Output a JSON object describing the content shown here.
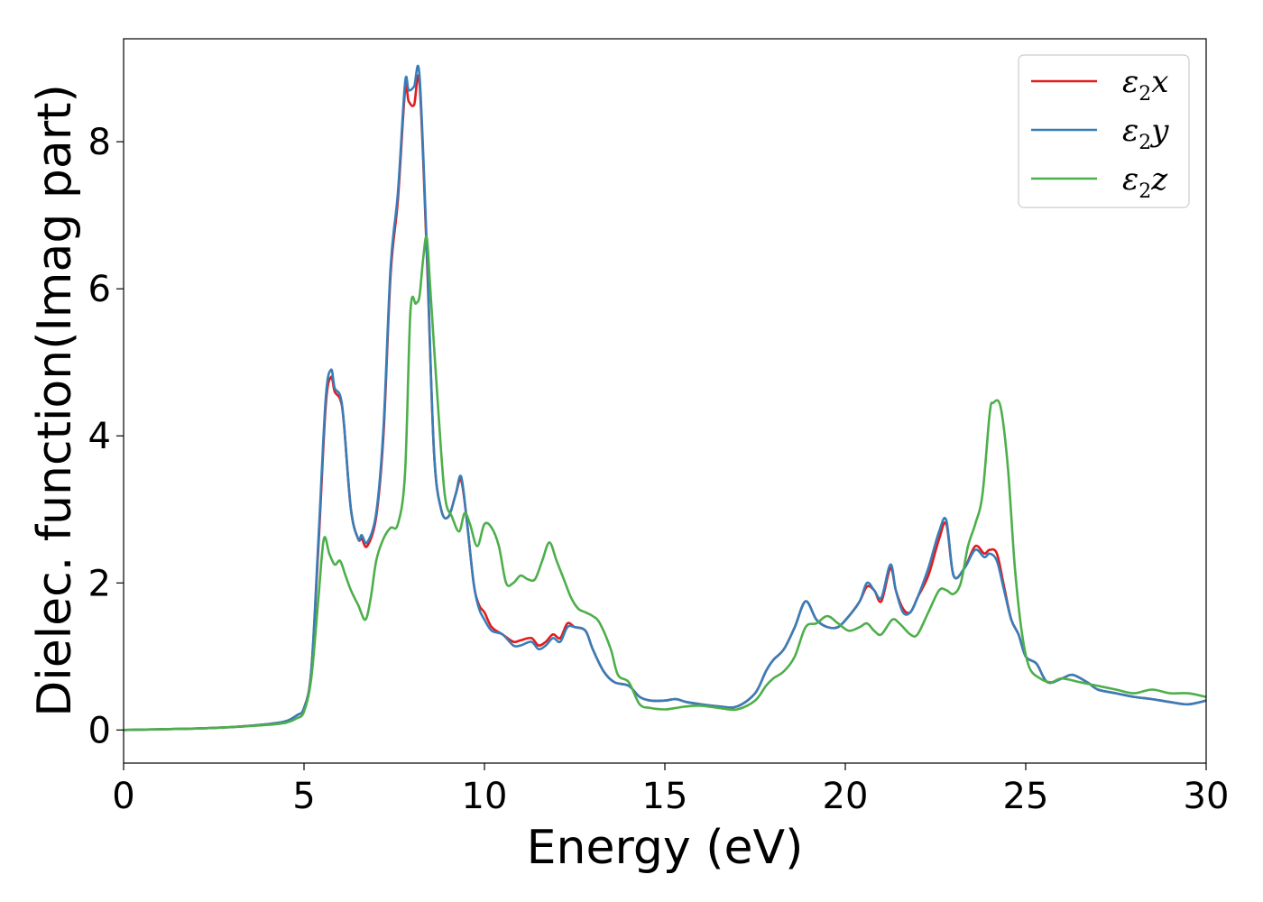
{
  "chart_data": {
    "type": "line",
    "title": "",
    "xlabel": "Energy (eV)",
    "ylabel": "Dielec. function(Imag part)",
    "xlim": [
      0,
      30
    ],
    "ylim": [
      -0.45,
      9.4
    ],
    "xticks": [
      0,
      5,
      10,
      15,
      20,
      25,
      30
    ],
    "xtick_labels": [
      "0",
      "5",
      "10",
      "15",
      "20",
      "25",
      "30"
    ],
    "yticks": [
      0,
      2,
      4,
      6,
      8
    ],
    "ytick_labels": [
      "0",
      "2",
      "4",
      "6",
      "8"
    ],
    "grid": false,
    "legend_position": "top-right",
    "series": [
      {
        "name": "ε2x",
        "base": "ε",
        "sub": "2",
        "suffix": "x",
        "color": "#e41a1c",
        "x": [
          0,
          1,
          2,
          3,
          4,
          4.5,
          4.8,
          5.0,
          5.2,
          5.4,
          5.6,
          5.75,
          5.85,
          6.0,
          6.1,
          6.3,
          6.5,
          6.6,
          6.75,
          7.0,
          7.2,
          7.4,
          7.6,
          7.8,
          7.9,
          8.05,
          8.2,
          8.4,
          8.6,
          8.8,
          9.0,
          9.2,
          9.35,
          9.5,
          9.7,
          9.85,
          10.0,
          10.2,
          10.5,
          10.8,
          11.0,
          11.3,
          11.5,
          11.7,
          11.9,
          12.1,
          12.3,
          12.5,
          12.8,
          13.0,
          13.3,
          13.6,
          14.0,
          14.3,
          14.6,
          15.0,
          15.3,
          15.6,
          16.0,
          16.5,
          17.0,
          17.5,
          17.8,
          18.0,
          18.3,
          18.6,
          18.9,
          19.2,
          19.5,
          19.8,
          20.1,
          20.4,
          20.6,
          20.8,
          21.0,
          21.25,
          21.4,
          21.6,
          21.8,
          22.0,
          22.3,
          22.6,
          22.8,
          23.0,
          23.3,
          23.6,
          23.85,
          24.0,
          24.2,
          24.4,
          24.6,
          24.8,
          25.0,
          25.3,
          25.6,
          26.0,
          26.3,
          26.7,
          27.0,
          27.5,
          28.0,
          28.5,
          29.0,
          29.5,
          30.0
        ],
        "y": [
          0.0,
          0.01,
          0.02,
          0.04,
          0.08,
          0.12,
          0.2,
          0.3,
          0.8,
          2.5,
          4.4,
          4.8,
          4.6,
          4.5,
          4.2,
          3.0,
          2.6,
          2.6,
          2.5,
          2.9,
          4.0,
          6.2,
          7.2,
          8.7,
          8.55,
          8.5,
          8.8,
          6.5,
          3.8,
          3.0,
          2.9,
          3.2,
          3.4,
          2.9,
          2.0,
          1.7,
          1.6,
          1.4,
          1.3,
          1.2,
          1.22,
          1.25,
          1.15,
          1.2,
          1.3,
          1.25,
          1.45,
          1.4,
          1.35,
          1.1,
          0.8,
          0.65,
          0.6,
          0.45,
          0.4,
          0.4,
          0.42,
          0.38,
          0.35,
          0.32,
          0.32,
          0.5,
          0.8,
          0.95,
          1.1,
          1.4,
          1.75,
          1.5,
          1.4,
          1.4,
          1.55,
          1.75,
          1.95,
          1.9,
          1.75,
          2.2,
          1.9,
          1.65,
          1.6,
          1.8,
          2.1,
          2.6,
          2.8,
          2.1,
          2.2,
          2.5,
          2.4,
          2.45,
          2.4,
          1.95,
          1.5,
          1.3,
          1.0,
          0.9,
          0.65,
          0.7,
          0.75,
          0.65,
          0.55,
          0.5,
          0.45,
          0.42,
          0.38,
          0.35,
          0.4
        ]
      },
      {
        "name": "ε2y",
        "base": "ε",
        "sub": "2",
        "suffix": "y",
        "color": "#377eb8",
        "x": [
          0,
          1,
          2,
          3,
          4,
          4.5,
          4.8,
          5.0,
          5.2,
          5.4,
          5.6,
          5.75,
          5.85,
          6.0,
          6.1,
          6.3,
          6.5,
          6.6,
          6.75,
          7.0,
          7.2,
          7.4,
          7.6,
          7.8,
          7.9,
          8.05,
          8.2,
          8.4,
          8.6,
          8.8,
          9.0,
          9.2,
          9.35,
          9.5,
          9.7,
          9.85,
          10.0,
          10.2,
          10.5,
          10.8,
          11.0,
          11.3,
          11.5,
          11.7,
          11.9,
          12.1,
          12.3,
          12.5,
          12.8,
          13.0,
          13.3,
          13.6,
          14.0,
          14.3,
          14.6,
          15.0,
          15.3,
          15.6,
          16.0,
          16.5,
          17.0,
          17.5,
          17.8,
          18.0,
          18.3,
          18.6,
          18.9,
          19.2,
          19.5,
          19.8,
          20.1,
          20.4,
          20.6,
          20.8,
          21.0,
          21.25,
          21.4,
          21.6,
          21.8,
          22.0,
          22.3,
          22.6,
          22.8,
          23.0,
          23.3,
          23.6,
          23.85,
          24.0,
          24.2,
          24.4,
          24.6,
          24.8,
          25.0,
          25.3,
          25.6,
          26.0,
          26.3,
          26.7,
          27.0,
          27.5,
          28.0,
          28.5,
          29.0,
          29.5,
          30.0
        ],
        "y": [
          0.0,
          0.01,
          0.02,
          0.04,
          0.08,
          0.12,
          0.2,
          0.3,
          0.8,
          2.6,
          4.5,
          4.9,
          4.65,
          4.55,
          4.2,
          3.0,
          2.6,
          2.65,
          2.55,
          2.95,
          4.1,
          6.3,
          7.3,
          8.8,
          8.7,
          8.75,
          8.9,
          6.6,
          3.8,
          3.0,
          2.9,
          3.2,
          3.45,
          2.9,
          2.0,
          1.65,
          1.5,
          1.35,
          1.3,
          1.15,
          1.15,
          1.2,
          1.1,
          1.15,
          1.25,
          1.2,
          1.4,
          1.4,
          1.35,
          1.1,
          0.8,
          0.65,
          0.6,
          0.45,
          0.4,
          0.4,
          0.42,
          0.38,
          0.35,
          0.32,
          0.32,
          0.5,
          0.8,
          0.95,
          1.1,
          1.4,
          1.75,
          1.5,
          1.4,
          1.4,
          1.55,
          1.75,
          2.0,
          1.9,
          1.8,
          2.25,
          1.9,
          1.6,
          1.6,
          1.8,
          2.2,
          2.7,
          2.85,
          2.1,
          2.2,
          2.45,
          2.35,
          2.4,
          2.3,
          1.9,
          1.5,
          1.3,
          1.0,
          0.9,
          0.65,
          0.7,
          0.75,
          0.65,
          0.55,
          0.5,
          0.45,
          0.42,
          0.38,
          0.35,
          0.4
        ]
      },
      {
        "name": "ε2z",
        "base": "ε",
        "sub": "2",
        "suffix": "z",
        "color": "#4daf4a",
        "x": [
          0,
          1,
          2,
          3,
          4,
          4.5,
          4.8,
          5.0,
          5.2,
          5.4,
          5.55,
          5.7,
          5.85,
          6.0,
          6.15,
          6.3,
          6.5,
          6.7,
          6.85,
          7.0,
          7.2,
          7.4,
          7.6,
          7.8,
          7.95,
          8.1,
          8.2,
          8.3,
          8.4,
          8.5,
          8.7,
          8.9,
          9.1,
          9.3,
          9.45,
          9.6,
          9.8,
          10.0,
          10.2,
          10.4,
          10.6,
          10.8,
          11.0,
          11.2,
          11.4,
          11.6,
          11.8,
          12.0,
          12.2,
          12.4,
          12.6,
          12.8,
          13.0,
          13.2,
          13.5,
          13.7,
          14.0,
          14.3,
          14.6,
          15.0,
          15.3,
          15.6,
          16.0,
          16.5,
          17.0,
          17.5,
          17.8,
          18.0,
          18.3,
          18.6,
          18.9,
          19.2,
          19.5,
          19.8,
          20.1,
          20.4,
          20.6,
          20.8,
          21.0,
          21.3,
          21.5,
          21.8,
          22.0,
          22.3,
          22.6,
          22.8,
          23.0,
          23.2,
          23.4,
          23.6,
          23.8,
          24.0,
          24.1,
          24.3,
          24.5,
          24.7,
          24.9,
          25.1,
          25.4,
          25.7,
          26.0,
          26.5,
          27.0,
          27.5,
          28.0,
          28.5,
          29.0,
          29.5,
          30.0
        ],
        "y": [
          0.0,
          0.01,
          0.02,
          0.04,
          0.07,
          0.1,
          0.16,
          0.25,
          0.7,
          1.8,
          2.6,
          2.4,
          2.25,
          2.3,
          2.1,
          1.9,
          1.7,
          1.5,
          1.8,
          2.3,
          2.6,
          2.75,
          2.8,
          3.5,
          5.7,
          5.8,
          5.9,
          6.4,
          6.7,
          6.0,
          4.5,
          3.2,
          2.9,
          2.7,
          2.95,
          2.8,
          2.5,
          2.8,
          2.75,
          2.5,
          2.0,
          2.0,
          2.1,
          2.05,
          2.05,
          2.3,
          2.55,
          2.3,
          2.05,
          1.8,
          1.65,
          1.6,
          1.55,
          1.45,
          1.1,
          0.75,
          0.65,
          0.35,
          0.3,
          0.28,
          0.3,
          0.32,
          0.33,
          0.3,
          0.28,
          0.4,
          0.6,
          0.7,
          0.8,
          1.0,
          1.4,
          1.45,
          1.55,
          1.45,
          1.35,
          1.4,
          1.45,
          1.35,
          1.3,
          1.5,
          1.45,
          1.3,
          1.3,
          1.6,
          1.9,
          1.9,
          1.85,
          2.0,
          2.5,
          2.8,
          3.2,
          4.3,
          4.45,
          4.4,
          3.6,
          2.2,
          1.3,
          0.85,
          0.7,
          0.65,
          0.7,
          0.65,
          0.6,
          0.55,
          0.5,
          0.55,
          0.5,
          0.5,
          0.45
        ]
      }
    ]
  }
}
